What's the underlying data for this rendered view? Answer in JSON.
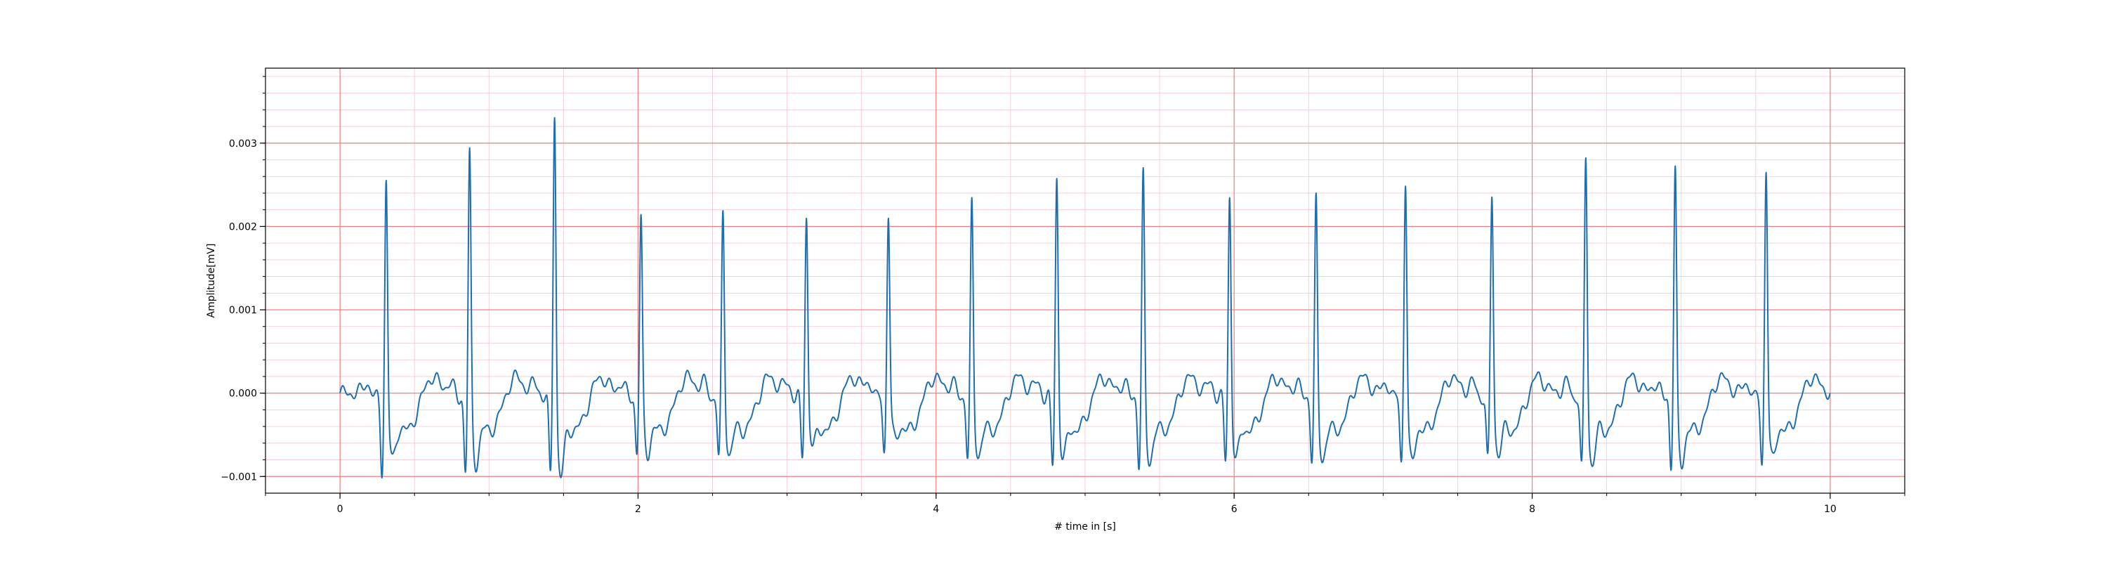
{
  "chart_data": {
    "type": "line",
    "title": "",
    "xlabel": "# time in [s]",
    "ylabel": "Amplitude[mV]",
    "xlim": [
      -0.5,
      10.5
    ],
    "ylim": [
      -0.0012,
      0.0039
    ],
    "xticks": [
      0,
      2,
      4,
      6,
      8,
      10
    ],
    "xtick_labels": [
      "0",
      "2",
      "4",
      "6",
      "8",
      "10"
    ],
    "yticks": [
      -0.001,
      0,
      0.001,
      0.002,
      0.003
    ],
    "ytick_labels": [
      "−0.001",
      "0.000",
      "0.001",
      "0.002",
      "0.003"
    ],
    "grid": {
      "major": true,
      "minor": true,
      "major_color": "#f08080",
      "minor_color": "#f4c6d4"
    },
    "series": [
      {
        "color": "#1f6fb0",
        "beats": [
          {
            "t": 0.31,
            "peak": 0.00277,
            "q": -0.0009,
            "s": -0.00055
          },
          {
            "t": 0.87,
            "peak": 0.00311,
            "q": -0.0009,
            "s": -0.0006
          },
          {
            "t": 1.44,
            "peak": 0.00365,
            "q": -0.00095,
            "s": -0.00075
          },
          {
            "t": 2.02,
            "peak": 0.00231,
            "q": -0.00068,
            "s": -0.00048
          },
          {
            "t": 2.57,
            "peak": 0.00236,
            "q": -0.00074,
            "s": -0.00048
          },
          {
            "t": 3.13,
            "peak": 0.00232,
            "q": -0.00072,
            "s": -0.0004
          },
          {
            "t": 3.68,
            "peak": 0.00232,
            "q": -0.00066,
            "s": -0.0003
          },
          {
            "t": 4.24,
            "peak": 0.00247,
            "q": -0.00072,
            "s": -0.0005
          },
          {
            "t": 4.81,
            "peak": 0.00282,
            "q": -0.00082,
            "s": -0.00055
          },
          {
            "t": 5.39,
            "peak": 0.00284,
            "q": -0.00082,
            "s": -0.00058
          },
          {
            "t": 5.97,
            "peak": 0.00259,
            "q": -0.00076,
            "s": -0.00055
          },
          {
            "t": 6.55,
            "peak": 0.00253,
            "q": -0.00075,
            "s": -0.00055
          },
          {
            "t": 7.15,
            "peak": 0.00278,
            "q": -0.00078,
            "s": -0.00058
          },
          {
            "t": 7.73,
            "peak": 0.00258,
            "q": -0.00078,
            "s": -0.00048
          },
          {
            "t": 8.36,
            "peak": 0.00306,
            "q": -0.00086,
            "s": -0.0006
          },
          {
            "t": 8.96,
            "peak": 0.00292,
            "q": -0.00084,
            "s": -0.0006
          },
          {
            "t": 9.57,
            "peak": 0.00292,
            "q": -0.0008,
            "s": -0.00055
          }
        ],
        "x_start": 0,
        "x_end": 10,
        "y_end": 0.0
      }
    ]
  }
}
